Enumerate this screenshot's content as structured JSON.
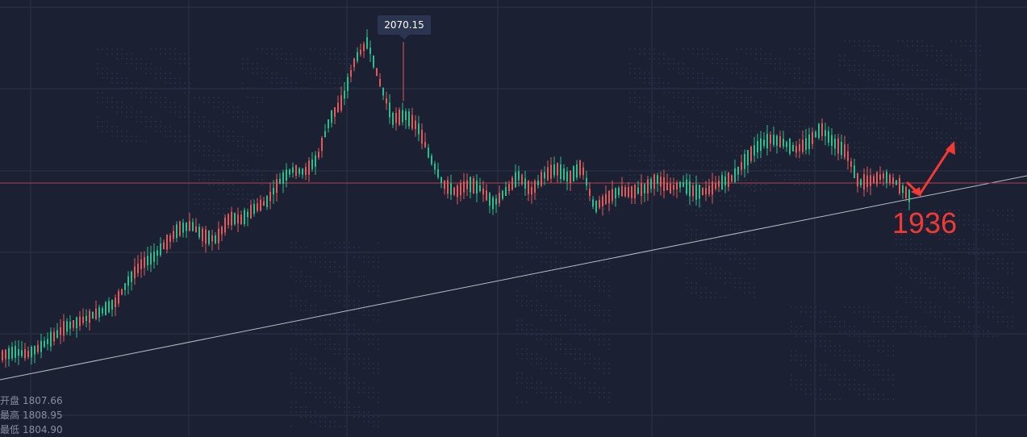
{
  "colors": {
    "background": "#1b2032",
    "grid": "#2c3348",
    "up": "#e25b5b",
    "down": "#2dbf8b",
    "trendline": "#b8bcc8",
    "hline": "#b3404a",
    "annotation": "#f03a33"
  },
  "peak_label": "2070.15",
  "annotation_text": "1936",
  "info": [
    {
      "label": "开盘",
      "value": "1807.66"
    },
    {
      "label": "最高",
      "value": "1808.95"
    },
    {
      "label": "最低",
      "value": "1804.90"
    }
  ],
  "chart_data": {
    "type": "candlestick",
    "ohlc_anchor": {
      "open": 1807.66,
      "high": 1808.95,
      "low": 1804.9
    },
    "peak_value": 2070.15,
    "trend_target": 1936,
    "price_path": [
      1805,
      1808,
      1806,
      1812,
      1820,
      1829,
      1833,
      1838,
      1843,
      1850,
      1868,
      1882,
      1888,
      1900,
      1912,
      1915,
      1906,
      1903,
      1921,
      1920,
      1929,
      1935,
      1952,
      1962,
      1960,
      1971,
      2005,
      2020,
      2055,
      2070,
      2035,
      2005,
      2008,
      1998,
      1972,
      1950,
      1943,
      1950,
      1946,
      1933,
      1944,
      1957,
      1944,
      1957,
      1963,
      1955,
      1965,
      1930,
      1938,
      1944,
      1943,
      1946,
      1954,
      1946,
      1950,
      1943,
      1944,
      1951,
      1955,
      1970,
      1982,
      1988,
      1985,
      1979,
      1985,
      1997,
      1985,
      1977,
      1951,
      1953,
      1957,
      1951,
      1940
    ]
  }
}
